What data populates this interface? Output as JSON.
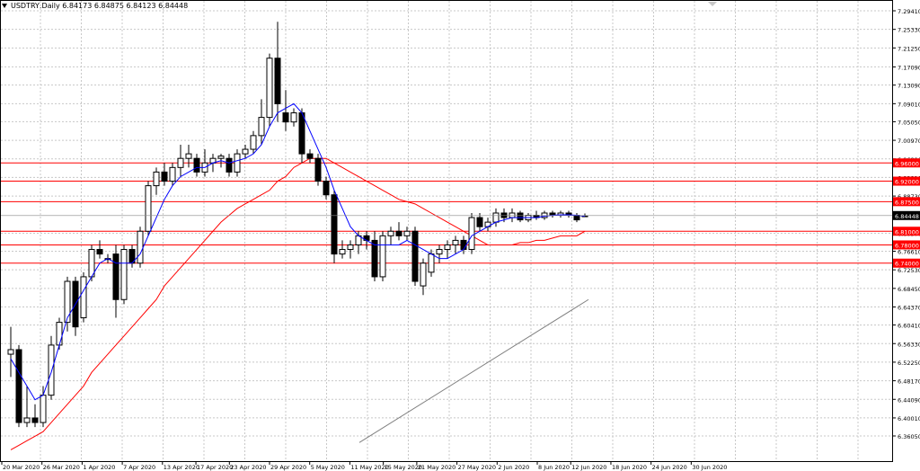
{
  "header": {
    "symbol_line": "USDTRY,Daily  6.84173 6.84875 6.84123 6.84448"
  },
  "colors": {
    "background": "#ffffff",
    "grid": "#c8c8c8",
    "up_candle": "#ffffff",
    "down_candle": "#000000",
    "candle_outline": "#000000",
    "ma_fast": "#0000ff",
    "ma_slow": "#ff0000",
    "ma_long": "#808080",
    "level_line": "#ff0000",
    "level_label_bg": "#ff0000",
    "level_label_text": "#ffffff",
    "price_label_bg": "#000000",
    "price_label_text": "#ffffff"
  },
  "chart_data": {
    "type": "candlestick",
    "title": "USDTRY,Daily",
    "ohlc_readout": [
      "6.84173",
      "6.84875",
      "6.84123",
      "6.84448"
    ],
    "ylim": [
      6.3605,
      7.2941
    ],
    "y_ticks": [
      "7.29410",
      "7.25330",
      "7.21250",
      "7.17090",
      "7.13090",
      "7.09010",
      "7.05050",
      "7.00970",
      "6.96890",
      "6.92810",
      "6.88730",
      "6.84448",
      "6.80570",
      "6.76610",
      "6.72530",
      "6.68450",
      "6.64370",
      "6.60410",
      "6.56330",
      "6.52250",
      "6.48170",
      "6.44090",
      "6.40010",
      "6.36050"
    ],
    "x_labels": [
      "20 Mar 2020",
      "26 Mar 2020",
      "1 Apr 2020",
      "7 Apr 2020",
      "13 Apr 2020",
      "17 Apr 2020",
      "23 Apr 2020",
      "29 Apr 2020",
      "5 May 2020",
      "11 May 2020",
      "15 May 2020",
      "21 May 2020",
      "27 May 2020",
      "2 Jun 2020",
      "8 Jun 2020",
      "12 Jun 2020",
      "18 Jun 2020",
      "24 Jun 2020",
      "30 Jun 2020"
    ],
    "current_price": "6.84448",
    "levels": [
      "6.96000",
      "6.92000",
      "6.87500",
      "6.81000",
      "6.78000",
      "6.74000"
    ],
    "candles": [
      {
        "o": 6.54,
        "h": 6.6,
        "l": 6.49,
        "c": 6.55
      },
      {
        "o": 6.55,
        "h": 6.56,
        "l": 6.38,
        "c": 6.39
      },
      {
        "o": 6.39,
        "h": 6.47,
        "l": 6.38,
        "c": 6.4
      },
      {
        "o": 6.4,
        "h": 6.43,
        "l": 6.38,
        "c": 6.39
      },
      {
        "o": 6.39,
        "h": 6.47,
        "l": 6.38,
        "c": 6.45
      },
      {
        "o": 6.45,
        "h": 6.58,
        "l": 6.44,
        "c": 6.56
      },
      {
        "o": 6.56,
        "h": 6.62,
        "l": 6.55,
        "c": 6.61
      },
      {
        "o": 6.61,
        "h": 6.71,
        "l": 6.59,
        "c": 6.7
      },
      {
        "o": 6.7,
        "h": 6.71,
        "l": 6.58,
        "c": 6.6
      },
      {
        "o": 6.62,
        "h": 6.72,
        "l": 6.61,
        "c": 6.71
      },
      {
        "o": 6.71,
        "h": 6.78,
        "l": 6.7,
        "c": 6.77
      },
      {
        "o": 6.77,
        "h": 6.79,
        "l": 6.75,
        "c": 6.76
      },
      {
        "o": 6.75,
        "h": 6.76,
        "l": 6.74,
        "c": 6.75
      },
      {
        "o": 6.76,
        "h": 6.78,
        "l": 6.62,
        "c": 6.66
      },
      {
        "o": 6.66,
        "h": 6.78,
        "l": 6.65,
        "c": 6.77
      },
      {
        "o": 6.77,
        "h": 6.78,
        "l": 6.73,
        "c": 6.74
      },
      {
        "o": 6.74,
        "h": 6.82,
        "l": 6.73,
        "c": 6.81
      },
      {
        "o": 6.81,
        "h": 6.92,
        "l": 6.8,
        "c": 6.91
      },
      {
        "o": 6.91,
        "h": 6.95,
        "l": 6.89,
        "c": 6.94
      },
      {
        "o": 6.94,
        "h": 6.96,
        "l": 6.91,
        "c": 6.92
      },
      {
        "o": 6.92,
        "h": 6.96,
        "l": 6.91,
        "c": 6.95
      },
      {
        "o": 6.95,
        "h": 7.0,
        "l": 6.93,
        "c": 6.97
      },
      {
        "o": 6.97,
        "h": 7.0,
        "l": 6.95,
        "c": 6.98
      },
      {
        "o": 6.97,
        "h": 6.98,
        "l": 6.93,
        "c": 6.94
      },
      {
        "o": 6.94,
        "h": 6.99,
        "l": 6.93,
        "c": 6.96
      },
      {
        "o": 6.96,
        "h": 6.98,
        "l": 6.94,
        "c": 6.97
      },
      {
        "o": 6.97,
        "h": 6.98,
        "l": 6.95,
        "c": 6.975
      },
      {
        "o": 6.97,
        "h": 6.98,
        "l": 6.93,
        "c": 6.94
      },
      {
        "o": 6.94,
        "h": 6.99,
        "l": 6.93,
        "c": 6.98
      },
      {
        "o": 6.98,
        "h": 7.0,
        "l": 6.97,
        "c": 6.99
      },
      {
        "o": 6.99,
        "h": 7.03,
        "l": 6.98,
        "c": 7.02
      },
      {
        "o": 7.02,
        "h": 7.1,
        "l": 7.0,
        "c": 7.06
      },
      {
        "o": 7.06,
        "h": 7.2,
        "l": 7.04,
        "c": 7.19
      },
      {
        "o": 7.19,
        "h": 7.27,
        "l": 7.05,
        "c": 7.09
      },
      {
        "o": 7.07,
        "h": 7.12,
        "l": 7.03,
        "c": 7.05
      },
      {
        "o": 7.05,
        "h": 7.08,
        "l": 7.04,
        "c": 7.07
      },
      {
        "o": 7.07,
        "h": 7.08,
        "l": 6.96,
        "c": 6.98
      },
      {
        "o": 6.98,
        "h": 6.99,
        "l": 6.96,
        "c": 6.97
      },
      {
        "o": 6.97,
        "h": 6.98,
        "l": 6.91,
        "c": 6.92
      },
      {
        "o": 6.92,
        "h": 6.93,
        "l": 6.88,
        "c": 6.89
      },
      {
        "o": 6.89,
        "h": 6.9,
        "l": 6.74,
        "c": 6.76
      },
      {
        "o": 6.76,
        "h": 6.79,
        "l": 6.75,
        "c": 6.77
      },
      {
        "o": 6.77,
        "h": 6.79,
        "l": 6.75,
        "c": 6.78
      },
      {
        "o": 6.78,
        "h": 6.81,
        "l": 6.76,
        "c": 6.8
      },
      {
        "o": 6.8,
        "h": 6.81,
        "l": 6.77,
        "c": 6.79
      },
      {
        "o": 6.79,
        "h": 6.81,
        "l": 6.7,
        "c": 6.71
      },
      {
        "o": 6.71,
        "h": 6.81,
        "l": 6.7,
        "c": 6.8
      },
      {
        "o": 6.8,
        "h": 6.82,
        "l": 6.78,
        "c": 6.81
      },
      {
        "o": 6.81,
        "h": 6.83,
        "l": 6.79,
        "c": 6.8
      },
      {
        "o": 6.8,
        "h": 6.82,
        "l": 6.79,
        "c": 6.81
      },
      {
        "o": 6.81,
        "h": 6.82,
        "l": 6.69,
        "c": 6.7
      },
      {
        "o": 6.69,
        "h": 6.75,
        "l": 6.67,
        "c": 6.74
      },
      {
        "o": 6.72,
        "h": 6.77,
        "l": 6.71,
        "c": 6.76
      },
      {
        "o": 6.76,
        "h": 6.78,
        "l": 6.74,
        "c": 6.77
      },
      {
        "o": 6.77,
        "h": 6.79,
        "l": 6.75,
        "c": 6.78
      },
      {
        "o": 6.78,
        "h": 6.8,
        "l": 6.76,
        "c": 6.79
      },
      {
        "o": 6.79,
        "h": 6.8,
        "l": 6.76,
        "c": 6.77
      },
      {
        "o": 6.77,
        "h": 6.85,
        "l": 6.76,
        "c": 6.84
      },
      {
        "o": 6.84,
        "h": 6.85,
        "l": 6.81,
        "c": 6.82
      },
      {
        "o": 6.82,
        "h": 6.84,
        "l": 6.81,
        "c": 6.83
      },
      {
        "o": 6.83,
        "h": 6.86,
        "l": 6.82,
        "c": 6.85
      },
      {
        "o": 6.85,
        "h": 6.86,
        "l": 6.83,
        "c": 6.84
      },
      {
        "o": 6.84,
        "h": 6.86,
        "l": 6.83,
        "c": 6.85
      },
      {
        "o": 6.85,
        "h": 6.855,
        "l": 6.83,
        "c": 6.835
      },
      {
        "o": 6.835,
        "h": 6.85,
        "l": 6.83,
        "c": 6.845
      },
      {
        "o": 6.845,
        "h": 6.855,
        "l": 6.835,
        "c": 6.84
      },
      {
        "o": 6.84,
        "h": 6.855,
        "l": 6.835,
        "c": 6.85
      },
      {
        "o": 6.85,
        "h": 6.855,
        "l": 6.84,
        "c": 6.845
      },
      {
        "o": 6.845,
        "h": 6.855,
        "l": 6.84,
        "c": 6.85
      },
      {
        "o": 6.85,
        "h": 6.855,
        "l": 6.84,
        "c": 6.845
      },
      {
        "o": 6.845,
        "h": 6.85,
        "l": 6.83,
        "c": 6.835
      },
      {
        "o": 6.842,
        "h": 6.849,
        "l": 6.841,
        "c": 6.844
      }
    ],
    "ma_fast": [
      6.53,
      6.5,
      6.47,
      6.44,
      6.45,
      6.5,
      6.56,
      6.62,
      6.65,
      6.68,
      6.71,
      6.74,
      6.75,
      6.74,
      6.74,
      6.74,
      6.76,
      6.8,
      6.84,
      6.88,
      6.91,
      6.93,
      6.94,
      6.95,
      6.95,
      6.96,
      6.965,
      6.96,
      6.965,
      6.97,
      6.98,
      7.0,
      7.04,
      7.07,
      7.08,
      7.09,
      7.07,
      7.03,
      6.99,
      6.95,
      6.9,
      6.86,
      6.82,
      6.8,
      6.79,
      6.78,
      6.78,
      6.78,
      6.78,
      6.79,
      6.78,
      6.77,
      6.76,
      6.75,
      6.75,
      6.76,
      6.77,
      6.8,
      6.81,
      6.82,
      6.83,
      6.835,
      6.84,
      6.84,
      6.84,
      6.84,
      6.843,
      6.845,
      6.846,
      6.846,
      6.845,
      6.843
    ],
    "ma_slow": [
      6.33,
      6.34,
      6.35,
      6.36,
      6.37,
      6.39,
      6.41,
      6.43,
      6.45,
      6.47,
      6.5,
      6.52,
      6.54,
      6.56,
      6.58,
      6.6,
      6.62,
      6.64,
      6.66,
      6.69,
      6.71,
      6.73,
      6.75,
      6.77,
      6.79,
      6.81,
      6.83,
      6.845,
      6.86,
      6.87,
      6.88,
      6.89,
      6.9,
      6.92,
      6.93,
      6.95,
      6.96,
      6.97,
      6.97,
      6.97,
      6.96,
      6.95,
      6.94,
      6.93,
      6.92,
      6.91,
      6.9,
      6.89,
      6.88,
      6.875,
      6.87,
      6.86,
      6.85,
      6.84,
      6.83,
      6.82,
      6.81,
      6.8,
      6.79,
      6.78,
      6.78,
      6.78,
      6.78,
      6.785,
      6.785,
      6.79,
      6.79,
      6.795,
      6.8,
      6.8,
      6.8,
      6.81
    ]
  }
}
